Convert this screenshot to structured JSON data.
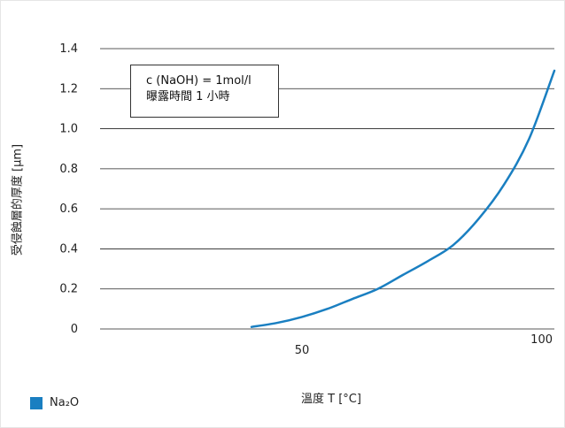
{
  "chart_data": {
    "type": "line",
    "xlabel": "溫度 T [°C]",
    "ylabel": "受侵蝕層的厚度 [µm]",
    "xlim": [
      10,
      100
    ],
    "ylim": [
      0,
      1.4
    ],
    "x_ticks": [
      "50",
      "100"
    ],
    "y_ticks": [
      "0",
      "0.2",
      "0.4",
      "0.6",
      "0.8",
      "1.0",
      "1.2",
      "1.4"
    ],
    "grid": "horizontal",
    "series": [
      {
        "name": "Na₂O",
        "color": "#1a7fc1",
        "x": [
          40,
          45,
          50,
          55,
          60,
          65,
          70,
          75,
          80,
          85,
          90,
          95,
          100
        ],
        "y": [
          0.01,
          0.03,
          0.06,
          0.1,
          0.15,
          0.2,
          0.27,
          0.34,
          0.42,
          0.55,
          0.72,
          0.95,
          1.29
        ]
      }
    ],
    "annotation": [
      "c (NaOH) = 1mol/l",
      "曝露時間 1 小時"
    ],
    "legend_position": "bottom-left"
  }
}
